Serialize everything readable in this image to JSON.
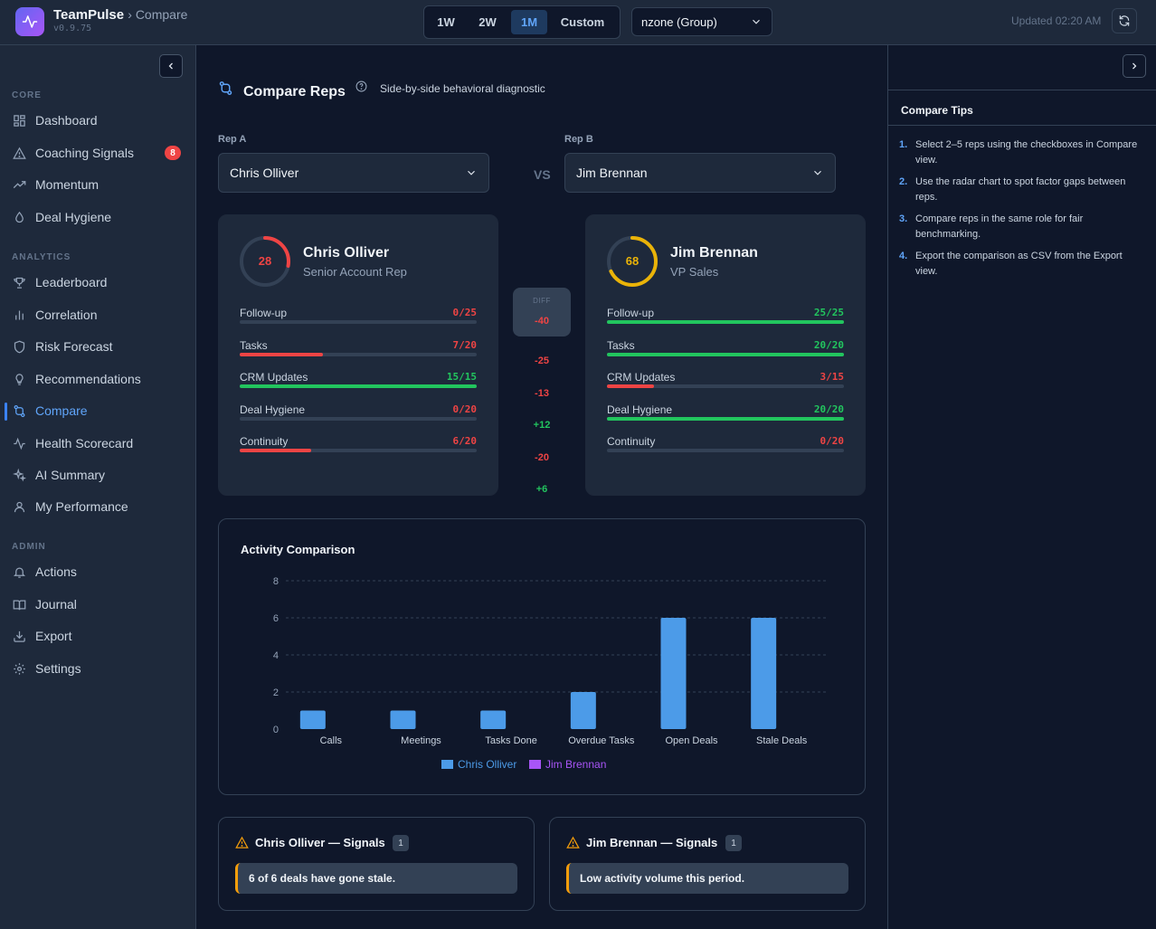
{
  "app": {
    "name": "TeamPulse",
    "crumb": "› Compare",
    "version": "v0.9.75",
    "updated": "Updated 02:20 AM"
  },
  "range": {
    "options": [
      "1W",
      "2W",
      "1M",
      "Custom"
    ],
    "selected": "1M"
  },
  "group_select": {
    "value": "nzone (Group)"
  },
  "sidebar": {
    "sections": [
      {
        "title": "CORE",
        "items": [
          "Dashboard",
          "Coaching Signals",
          "Momentum",
          "Deal Hygiene"
        ]
      },
      {
        "title": "ANALYTICS",
        "items": [
          "Leaderboard",
          "Correlation",
          "Risk Forecast",
          "Recommendations",
          "Compare",
          "Health Scorecard",
          "AI Summary",
          "My Performance"
        ]
      },
      {
        "title": "ADMIN",
        "items": [
          "Actions",
          "Journal",
          "Export",
          "Settings"
        ]
      }
    ],
    "coaching_badge": "8",
    "active": "Compare"
  },
  "page": {
    "title": "Compare Reps",
    "subtitle": "Side-by-side behavioral diagnostic"
  },
  "rep_a": {
    "label": "Rep A",
    "name": "Chris Olliver",
    "role": "Senior Account Rep",
    "score": "28",
    "factors": [
      {
        "name": "Follow-up",
        "value": "0/25",
        "fraction": 0.0,
        "status": "bad"
      },
      {
        "name": "Tasks",
        "value": "7/20",
        "fraction": 0.35,
        "status": "bad"
      },
      {
        "name": "CRM Updates",
        "value": "15/15",
        "fraction": 1.0,
        "status": "good"
      },
      {
        "name": "Deal Hygiene",
        "value": "0/20",
        "fraction": 0.0,
        "status": "bad"
      },
      {
        "name": "Continuity",
        "value": "6/20",
        "fraction": 0.3,
        "status": "bad"
      }
    ]
  },
  "vs": "VS",
  "rep_b": {
    "label": "Rep B",
    "name": "Jim Brennan",
    "role": "VP Sales",
    "score": "68",
    "factors": [
      {
        "name": "Follow-up",
        "value": "25/25",
        "fraction": 1.0,
        "status": "good"
      },
      {
        "name": "Tasks",
        "value": "20/20",
        "fraction": 1.0,
        "status": "good"
      },
      {
        "name": "CRM Updates",
        "value": "3/15",
        "fraction": 0.2,
        "status": "bad"
      },
      {
        "name": "Deal Hygiene",
        "value": "20/20",
        "fraction": 1.0,
        "status": "good"
      },
      {
        "name": "Continuity",
        "value": "0/20",
        "fraction": 0.0,
        "status": "bad"
      }
    ]
  },
  "diff": {
    "label": "DIFF",
    "total": "-40",
    "factors": [
      "-25",
      "-13",
      "+12",
      "-20",
      "+6"
    ]
  },
  "chart_data": {
    "type": "bar",
    "title": "Activity Comparison",
    "categories": [
      "Calls",
      "Meetings",
      "Tasks Done",
      "Overdue Tasks",
      "Open Deals",
      "Stale Deals"
    ],
    "series": [
      {
        "name": "Chris Olliver",
        "values": [
          1,
          1,
          1,
          2,
          6,
          6
        ],
        "color": "#4c9be8"
      },
      {
        "name": "Jim Brennan",
        "values": [
          0,
          0,
          0,
          0,
          0,
          0
        ],
        "color": "#a855f7"
      }
    ],
    "yticks": [
      0,
      2,
      4,
      6,
      8
    ],
    "ylim": [
      0,
      8
    ],
    "grid": true,
    "legend": "bottom"
  },
  "signals": [
    {
      "title": "Chris Olliver — Signals",
      "count": "1",
      "message": "6 of 6 deals have gone stale."
    },
    {
      "title": "Jim Brennan — Signals",
      "count": "1",
      "message": "Low activity volume this period."
    }
  ],
  "tips": {
    "title": "Compare Tips",
    "items": [
      "Select 2–5 reps using the checkboxes in Compare view.",
      "Use the radar chart to spot factor gaps between reps.",
      "Compare reps in the same role for fair benchmarking.",
      "Export the comparison as CSV from the Export view."
    ]
  },
  "colors": {
    "accent": "#60a5fa",
    "good": "#22c55e",
    "bad": "#ef4444",
    "warn": "#f59e0b",
    "score_a": "#ef4444",
    "score_b": "#eab308"
  }
}
